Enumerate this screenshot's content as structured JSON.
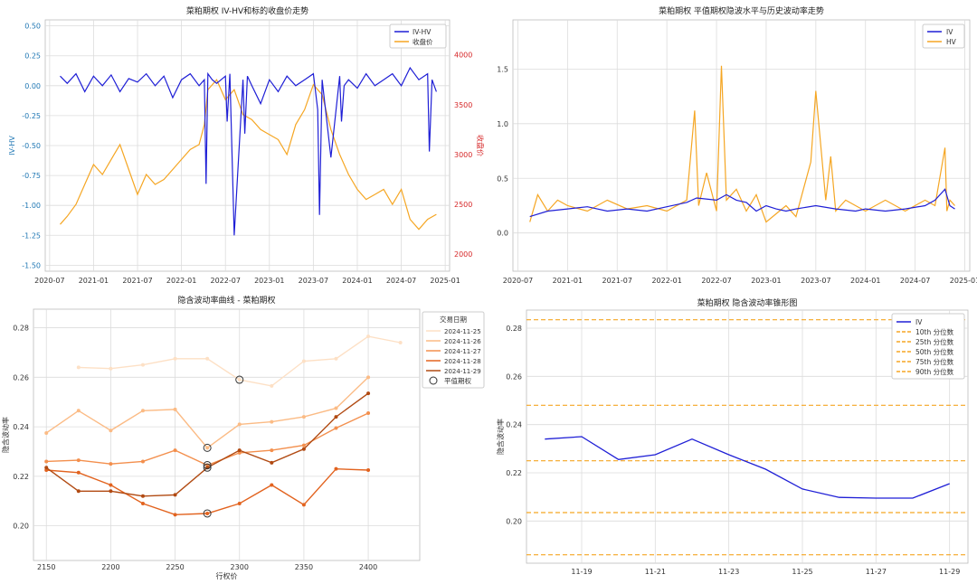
{
  "chart_data": [
    {
      "type": "line",
      "title": "菜粕期权 IV-HV和标的收盘价走势",
      "ylabel": "IV-HV",
      "y2label": "收盘价",
      "xticks": [
        "2020-07",
        "2021-01",
        "2021-07",
        "2022-01",
        "2022-07",
        "2023-01",
        "2023-07",
        "2024-01",
        "2024-07",
        "2025-01"
      ],
      "yticks": [
        "0.50",
        "0.25",
        "0.00",
        "-0.25",
        "-0.50",
        "-0.75",
        "-1.00",
        "-1.25",
        "-1.50"
      ],
      "y2ticks": [
        "4000",
        "3500",
        "3000",
        "2500",
        "2000"
      ],
      "xlim": [
        2020.45,
        2025.05
      ],
      "ylim": [
        -1.55,
        0.55
      ],
      "y2lim": [
        1830,
        4350
      ],
      "legend": [
        "IV-HV",
        "收盘价"
      ],
      "legend_loc": "top-right",
      "series": [
        {
          "name": "IV-HV",
          "color": "#1f1fd6",
          "x": [
            2020.62,
            2020.7,
            2020.8,
            2020.9,
            2021.0,
            2021.1,
            2021.2,
            2021.3,
            2021.4,
            2021.5,
            2021.6,
            2021.7,
            2021.8,
            2021.9,
            2022.0,
            2022.1,
            2022.2,
            2022.26,
            2022.28,
            2022.3,
            2022.35,
            2022.4,
            2022.5,
            2022.52,
            2022.55,
            2022.6,
            2022.7,
            2022.72,
            2022.75,
            2022.8,
            2022.9,
            2023.0,
            2023.1,
            2023.2,
            2023.3,
            2023.4,
            2023.5,
            2023.55,
            2023.57,
            2023.6,
            2023.7,
            2023.8,
            2023.82,
            2023.85,
            2023.9,
            2024.0,
            2024.1,
            2024.2,
            2024.3,
            2024.4,
            2024.5,
            2024.6,
            2024.7,
            2024.8,
            2024.82,
            2024.85,
            2024.9
          ],
          "values": [
            0.08,
            0.02,
            0.1,
            -0.05,
            0.08,
            0.0,
            0.09,
            -0.05,
            0.06,
            0.03,
            0.1,
            0.0,
            0.08,
            -0.1,
            0.05,
            0.1,
            0.0,
            0.05,
            -0.82,
            0.1,
            0.05,
            0.02,
            0.08,
            -0.3,
            0.1,
            -1.25,
            0.05,
            -0.4,
            0.08,
            0.0,
            -0.15,
            0.05,
            -0.05,
            0.08,
            0.0,
            0.05,
            0.1,
            -0.2,
            -1.08,
            0.05,
            -0.6,
            0.08,
            -0.3,
            0.0,
            0.05,
            -0.02,
            0.1,
            0.0,
            0.05,
            0.1,
            0.0,
            0.15,
            0.05,
            0.1,
            -0.55,
            0.05,
            -0.05
          ]
        },
        {
          "name": "收盘价",
          "color": "#f5a623",
          "axis": "right",
          "x": [
            2020.62,
            2020.7,
            2020.8,
            2020.9,
            2021.0,
            2021.1,
            2021.2,
            2021.3,
            2021.4,
            2021.5,
            2021.6,
            2021.7,
            2021.8,
            2021.9,
            2022.0,
            2022.1,
            2022.2,
            2022.26,
            2022.3,
            2022.4,
            2022.5,
            2022.6,
            2022.7,
            2022.8,
            2022.9,
            2023.0,
            2023.1,
            2023.2,
            2023.3,
            2023.4,
            2023.5,
            2023.6,
            2023.7,
            2023.8,
            2023.9,
            2024.0,
            2024.1,
            2024.2,
            2024.3,
            2024.4,
            2024.5,
            2024.6,
            2024.7,
            2024.8,
            2024.9
          ],
          "values": [
            2300,
            2380,
            2500,
            2700,
            2900,
            2800,
            2950,
            3100,
            2850,
            2600,
            2800,
            2700,
            2750,
            2850,
            2950,
            3050,
            3100,
            3300,
            3650,
            3750,
            3550,
            3650,
            3400,
            3350,
            3250,
            3200,
            3150,
            3000,
            3300,
            3450,
            3700,
            3600,
            3250,
            3000,
            2800,
            2650,
            2550,
            2600,
            2650,
            2500,
            2650,
            2350,
            2250,
            2350,
            2400
          ]
        }
      ]
    },
    {
      "type": "line",
      "title": "菜粕期权 平值期权隐波水平与历史波动率走势",
      "xticks": [
        "2020-07",
        "2021-01",
        "2021-07",
        "2022-01",
        "2022-07",
        "2023-01",
        "2023-07",
        "2024-01",
        "2024-07",
        "2025-01"
      ],
      "yticks": [
        "1.5",
        "1.0",
        "0.5",
        "0.0"
      ],
      "xlim": [
        2020.45,
        2025.05
      ],
      "ylim": [
        -0.35,
        1.95
      ],
      "legend": [
        "IV",
        "HV"
      ],
      "legend_loc": "top-right",
      "series": [
        {
          "name": "IV",
          "color": "#1f1fd6",
          "x": [
            2020.62,
            2020.8,
            2021.0,
            2021.2,
            2021.4,
            2021.6,
            2021.8,
            2022.0,
            2022.2,
            2022.3,
            2022.5,
            2022.6,
            2022.7,
            2022.8,
            2022.9,
            2023.0,
            2023.1,
            2023.2,
            2023.3,
            2023.5,
            2023.7,
            2023.9,
            2024.0,
            2024.2,
            2024.4,
            2024.6,
            2024.7,
            2024.8,
            2024.85,
            2024.9
          ],
          "values": [
            0.15,
            0.2,
            0.22,
            0.24,
            0.2,
            0.22,
            0.2,
            0.24,
            0.28,
            0.32,
            0.3,
            0.35,
            0.3,
            0.28,
            0.2,
            0.25,
            0.22,
            0.2,
            0.22,
            0.25,
            0.22,
            0.2,
            0.22,
            0.2,
            0.22,
            0.25,
            0.3,
            0.4,
            0.25,
            0.22
          ]
        },
        {
          "name": "HV",
          "color": "#f5a623",
          "x": [
            2020.62,
            2020.7,
            2020.8,
            2020.9,
            2021.0,
            2021.2,
            2021.4,
            2021.6,
            2021.8,
            2022.0,
            2022.2,
            2022.28,
            2022.32,
            2022.4,
            2022.5,
            2022.55,
            2022.6,
            2022.7,
            2022.8,
            2022.9,
            2023.0,
            2023.2,
            2023.3,
            2023.45,
            2023.5,
            2023.6,
            2023.65,
            2023.7,
            2023.8,
            2023.9,
            2024.0,
            2024.2,
            2024.4,
            2024.6,
            2024.7,
            2024.8,
            2024.82,
            2024.85,
            2024.9
          ],
          "values": [
            0.1,
            0.35,
            0.2,
            0.3,
            0.25,
            0.2,
            0.3,
            0.22,
            0.25,
            0.2,
            0.3,
            1.12,
            0.25,
            0.55,
            0.2,
            1.53,
            0.3,
            0.4,
            0.2,
            0.35,
            0.1,
            0.25,
            0.15,
            0.65,
            1.3,
            0.3,
            0.7,
            0.2,
            0.3,
            0.25,
            0.2,
            0.3,
            0.2,
            0.3,
            0.25,
            0.78,
            0.2,
            0.3,
            0.25
          ]
        }
      ]
    },
    {
      "type": "line",
      "title": "隐含波动率曲线 - 菜粕期权",
      "xlabel": "行权价",
      "ylabel": "隐含波动率",
      "xticks": [
        "2150",
        "2200",
        "2250",
        "2300",
        "2350",
        "2400"
      ],
      "yticks": [
        "0.28",
        "0.26",
        "0.24",
        "0.22",
        "0.20"
      ],
      "xlim": [
        2140,
        2440
      ],
      "ylim": [
        0.186,
        0.2875
      ],
      "legend_title": "交易日期",
      "legend_loc": "top-right",
      "atm_label": "平值期权",
      "series": [
        {
          "name": "2024-11-25",
          "color": "#fde0c5",
          "x": [
            2175,
            2200,
            2225,
            2250,
            2275,
            2300,
            2325,
            2350,
            2375,
            2400,
            2425
          ],
          "values": [
            0.264,
            0.2635,
            0.265,
            0.2675,
            0.2675,
            0.259,
            0.2565,
            0.2665,
            0.2675,
            0.2765,
            0.274
          ],
          "atm": [
            2300,
            0.259
          ]
        },
        {
          "name": "2024-11-26",
          "color": "#fbbb85",
          "x": [
            2150,
            2175,
            2200,
            2225,
            2250,
            2275,
            2300,
            2325,
            2350,
            2375,
            2400
          ],
          "values": [
            0.2375,
            0.2465,
            0.2385,
            0.2465,
            0.247,
            0.2315,
            0.241,
            0.242,
            0.244,
            0.2475,
            0.26
          ],
          "atm": [
            2275,
            0.2315
          ]
        },
        {
          "name": "2024-11-27",
          "color": "#f38f4d",
          "x": [
            2150,
            2175,
            2200,
            2225,
            2250,
            2275,
            2300,
            2325,
            2350,
            2375,
            2400
          ],
          "values": [
            0.226,
            0.2265,
            0.225,
            0.226,
            0.2305,
            0.2245,
            0.2295,
            0.2305,
            0.2325,
            0.2395,
            0.2455
          ],
          "atm": [
            2275,
            0.2245
          ]
        },
        {
          "name": "2024-11-28",
          "color": "#e2631f",
          "x": [
            2150,
            2175,
            2200,
            2225,
            2250,
            2275,
            2300,
            2325,
            2350,
            2375,
            2400
          ],
          "values": [
            0.2225,
            0.2215,
            0.2165,
            0.209,
            0.2045,
            0.205,
            0.209,
            0.2165,
            0.2085,
            0.223,
            0.2225
          ],
          "atm": [
            2275,
            0.205
          ]
        },
        {
          "name": "2024-11-29",
          "color": "#b14a12",
          "x": [
            2150,
            2175,
            2200,
            2225,
            2250,
            2275,
            2300,
            2325,
            2350,
            2375,
            2400
          ],
          "values": [
            0.2235,
            0.214,
            0.214,
            0.212,
            0.2125,
            0.2235,
            0.2305,
            0.2255,
            0.231,
            0.244,
            0.2535
          ],
          "atm": [
            2275,
            0.2235
          ]
        }
      ]
    },
    {
      "type": "line",
      "title": "菜粕期权 隐含波动率锥形图",
      "ylabel": "隐含波动率",
      "xticks": [
        "11-19",
        "11-21",
        "11-23",
        "11-25",
        "11-27",
        "11-29"
      ],
      "yticks": [
        "0.28",
        "0.26",
        "0.24",
        "0.22",
        "0.20"
      ],
      "xlim": [
        17.5,
        29.5
      ],
      "ylim": [
        0.1825,
        0.2875
      ],
      "legend_loc": "top-right",
      "series": [
        {
          "name": "IV",
          "color": "#1f1fd6",
          "x": [
            18,
            19,
            20,
            21,
            22,
            23,
            24,
            25,
            26,
            27,
            28,
            29
          ],
          "values": [
            0.234,
            0.235,
            0.2255,
            0.2275,
            0.234,
            0.2275,
            0.2215,
            0.2133,
            0.2098,
            0.2095,
            0.2095,
            0.2155
          ]
        }
      ],
      "percentiles": [
        {
          "name": "10th 分位数",
          "value": 0.186
        },
        {
          "name": "25th 分位数",
          "value": 0.2035
        },
        {
          "name": "50th 分位数",
          "value": 0.225
        },
        {
          "name": "75th 分位数",
          "value": 0.248
        },
        {
          "name": "90th 分位数",
          "value": 0.2835
        }
      ],
      "percentile_color": "#f5a623"
    }
  ]
}
